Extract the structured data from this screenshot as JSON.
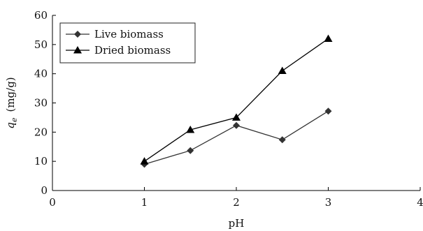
{
  "chart_data": {
    "type": "line",
    "xlabel": "pH",
    "ylabel_main": "q",
    "ylabel_sub": "e",
    "ylabel_units": "(mg/g)",
    "xlim": [
      0,
      4
    ],
    "ylim": [
      0,
      60
    ],
    "xticks": [
      0,
      1,
      2,
      3,
      4
    ],
    "yticks": [
      0,
      10,
      20,
      30,
      40,
      50,
      60
    ],
    "grid": false,
    "legend_position": "top-left",
    "series": [
      {
        "name": "Live biomass",
        "marker": "diamond",
        "color": "#333333",
        "x": [
          1,
          1.5,
          2,
          2.5,
          3
        ],
        "y": [
          9,
          13.7,
          22.3,
          17.4,
          27.2
        ]
      },
      {
        "name": "Dried biomass",
        "marker": "triangle",
        "color": "#000000",
        "x": [
          1,
          1.5,
          2,
          2.5,
          3
        ],
        "y": [
          10,
          20.8,
          25,
          41,
          52
        ]
      }
    ]
  }
}
